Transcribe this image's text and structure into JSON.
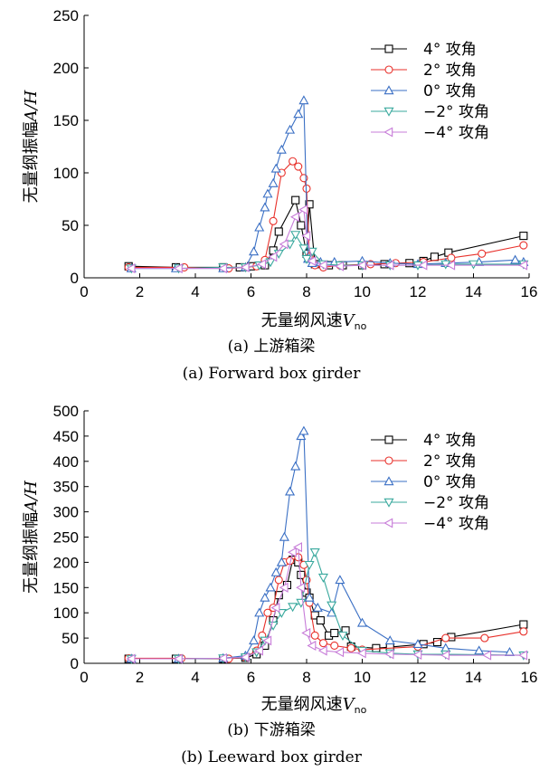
{
  "figure": {
    "colors": {
      "4deg": "#000000",
      "2deg": "#e8312b",
      "0deg": "#3a6fc4",
      "m2deg": "#3aa99e",
      "m4deg": "#c77cd8"
    }
  },
  "chart_data": [
    {
      "type": "line",
      "caption_cn": "(a)  上游箱梁",
      "caption_en": "(a)  Forward box girder",
      "xlabel_prefix": "无量纲风速",
      "xlabel_var": "V",
      "xlabel_sub": "no",
      "ylabel_prefix": "无量纲振幅",
      "ylabel_var": "A/H",
      "xlim": [
        0,
        16
      ],
      "ylim": [
        0,
        250
      ],
      "xticks": [
        "0",
        "2",
        "4",
        "6",
        "8",
        "10",
        "12",
        "14",
        "16"
      ],
      "yticks": [
        "0",
        "50",
        "100",
        "150",
        "200",
        "250"
      ],
      "series": [
        {
          "name": "4°  攻角",
          "key": "4deg",
          "marker": "square",
          "x": [
            1.6,
            3.3,
            5.0,
            5.6,
            6.0,
            6.5,
            6.8,
            7.0,
            7.6,
            7.8,
            8.0,
            8.1,
            8.3,
            8.8,
            9.3,
            10.0,
            10.8,
            11.7,
            12.2,
            12.6,
            13.1,
            15.8
          ],
          "y": [
            11,
            10,
            10,
            10,
            11,
            12,
            26,
            44,
            74,
            50,
            23,
            70,
            13,
            12,
            12,
            12,
            13,
            14,
            16,
            20,
            24,
            40
          ]
        },
        {
          "name": "2°  攻角",
          "key": "2deg",
          "marker": "circle",
          "x": [
            1.6,
            3.6,
            5.2,
            5.8,
            6.2,
            6.5,
            6.8,
            7.1,
            7.5,
            7.7,
            7.9,
            8.0,
            8.1,
            8.3,
            8.6,
            9.2,
            10.3,
            11.2,
            12.2,
            13.2,
            14.3,
            15.8
          ],
          "y": [
            10,
            10,
            9,
            10,
            11,
            17,
            54,
            100,
            111,
            106,
            95,
            85,
            20,
            12,
            10,
            12,
            13,
            14,
            15,
            19,
            23,
            31
          ]
        },
        {
          "name": "0°  攻角",
          "key": "0deg",
          "marker": "triangle-up",
          "x": [
            1.7,
            3.3,
            5.0,
            5.8,
            6.1,
            6.3,
            6.5,
            6.6,
            6.8,
            6.9,
            7.1,
            7.4,
            7.7,
            7.9,
            8.05,
            8.2,
            8.5,
            9.0,
            10.0,
            11.0,
            12.0,
            13.0,
            14.2,
            15.5,
            15.8
          ],
          "y": [
            9,
            9,
            9,
            10,
            25,
            48,
            67,
            80,
            90,
            104,
            122,
            141,
            156,
            169,
            18,
            14,
            15,
            15,
            16,
            14,
            13,
            14,
            15,
            17,
            15
          ]
        },
        {
          "name": "−2°  攻角",
          "key": "m2deg",
          "marker": "triangle-down",
          "x": [
            1.7,
            3.4,
            5.0,
            5.8,
            6.3,
            6.7,
            7.0,
            7.4,
            7.6,
            7.9,
            8.0,
            8.2,
            8.6,
            9.2,
            10.0,
            11.0,
            12.0,
            13.0,
            14.0,
            15.8
          ],
          "y": [
            9,
            9,
            10,
            10,
            12,
            15,
            23,
            32,
            41,
            28,
            18,
            25,
            13,
            12,
            12,
            12,
            12,
            13,
            13,
            13
          ]
        },
        {
          "name": "−4°  攻角",
          "key": "m4deg",
          "marker": "triangle-left",
          "x": [
            1.7,
            3.4,
            5.0,
            5.8,
            6.4,
            6.8,
            7.2,
            7.6,
            7.9,
            8.0,
            8.2,
            8.6,
            9.2,
            10.0,
            11.0,
            12.2,
            13.2,
            15.8
          ],
          "y": [
            9,
            9,
            9,
            10,
            13,
            20,
            32,
            58,
            65,
            40,
            16,
            12,
            11,
            12,
            12,
            12,
            12,
            12
          ]
        }
      ]
    },
    {
      "type": "line",
      "caption_cn": "(b)  下游箱梁",
      "caption_en": "(b)  Leeward box girder",
      "xlabel_prefix": "无量纲风速",
      "xlabel_var": "V",
      "xlabel_sub": "no",
      "ylabel_prefix": "无量纲振幅",
      "ylabel_var": "A/H",
      "xlim": [
        0,
        16
      ],
      "ylim": [
        0,
        500
      ],
      "xticks": [
        "0",
        "2",
        "4",
        "6",
        "8",
        "10",
        "12",
        "14",
        "16"
      ],
      "yticks": [
        "0",
        "50",
        "100",
        "150",
        "200",
        "250",
        "300",
        "350",
        "400",
        "450",
        "500"
      ],
      "series": [
        {
          "name": "4°  攻角",
          "key": "4deg",
          "marker": "square",
          "x": [
            1.6,
            3.3,
            5.0,
            5.8,
            6.2,
            6.5,
            6.8,
            7.0,
            7.3,
            7.5,
            7.7,
            7.8,
            8.0,
            8.1,
            8.3,
            8.5,
            8.8,
            9.0,
            9.4,
            9.6,
            10.5,
            11.0,
            12.2,
            12.7,
            13.2,
            15.8
          ],
          "y": [
            9,
            9,
            9,
            11,
            18,
            35,
            85,
            135,
            155,
            205,
            200,
            175,
            140,
            130,
            95,
            85,
            55,
            60,
            65,
            33,
            30,
            32,
            38,
            42,
            52,
            77
          ]
        },
        {
          "name": "2°  攻角",
          "key": "2deg",
          "marker": "circle",
          "x": [
            1.6,
            3.5,
            5.2,
            5.8,
            6.2,
            6.4,
            6.6,
            6.8,
            7.0,
            7.2,
            7.4,
            7.7,
            7.9,
            8.0,
            8.1,
            8.3,
            8.6,
            9.0,
            9.6,
            10.0,
            12.0,
            13.0,
            14.4,
            15.8
          ],
          "y": [
            10,
            10,
            9,
            12,
            25,
            55,
            100,
            110,
            165,
            200,
            203,
            210,
            195,
            165,
            120,
            55,
            40,
            35,
            30,
            27,
            33,
            50,
            50,
            63
          ]
        },
        {
          "name": "0°  攻角",
          "key": "0deg",
          "marker": "triangle-up",
          "x": [
            1.7,
            3.4,
            5.0,
            5.8,
            6.1,
            6.3,
            6.5,
            6.7,
            6.9,
            7.1,
            7.2,
            7.4,
            7.6,
            7.8,
            7.9,
            8.1,
            8.4,
            8.9,
            9.2,
            10.0,
            11.0,
            12.0,
            13.0,
            14.2,
            15.3
          ],
          "y": [
            9,
            9,
            10,
            15,
            45,
            100,
            130,
            150,
            180,
            200,
            250,
            340,
            390,
            450,
            460,
            130,
            110,
            100,
            165,
            80,
            45,
            38,
            30,
            25,
            22
          ]
        },
        {
          "name": "−2°  攻角",
          "key": "m2deg",
          "marker": "triangle-down",
          "x": [
            1.7,
            3.4,
            5.0,
            5.8,
            6.2,
            6.5,
            6.8,
            7.1,
            7.5,
            7.8,
            8.1,
            8.3,
            8.6,
            8.9,
            9.3,
            10.0,
            11.0,
            12.0,
            13.0,
            15.8
          ],
          "y": [
            9,
            9,
            10,
            12,
            22,
            45,
            75,
            100,
            112,
            120,
            195,
            220,
            170,
            115,
            55,
            25,
            20,
            18,
            18,
            16
          ]
        },
        {
          "name": "−4°  攻角",
          "key": "m4deg",
          "marker": "triangle-left",
          "x": [
            1.7,
            3.4,
            5.0,
            5.8,
            6.3,
            6.6,
            6.9,
            7.2,
            7.5,
            7.7,
            7.8,
            8.0,
            8.2,
            8.6,
            9.2,
            10.0,
            11.0,
            12.0,
            13.0,
            14.5,
            15.8
          ],
          "y": [
            9,
            9,
            10,
            12,
            25,
            45,
            110,
            150,
            220,
            230,
            150,
            60,
            35,
            25,
            22,
            20,
            18,
            17,
            16,
            16,
            16
          ]
        }
      ]
    }
  ]
}
